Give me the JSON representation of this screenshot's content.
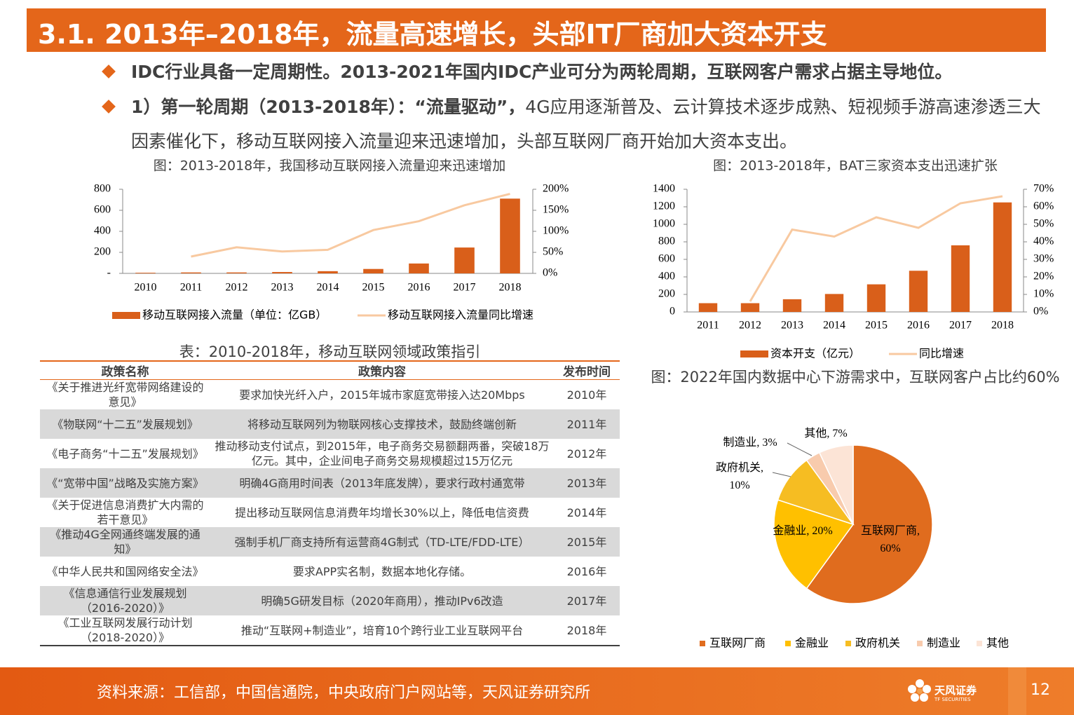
{
  "header": {
    "title": "3.1. 2013年–2018年，流量高速增长，头部IT厂商加大资本开支"
  },
  "bullets": [
    {
      "bold": "IDC行业具备一定周期性。2013-2021年国内IDC产业可分为两轮周期，互联网客户需求占据主导地位。"
    },
    {
      "bold": "1）第一轮周期（2013-2018年）：“流量驱动”，",
      "text": "4G应用逐渐普及、云计算技术逐步成熟、短视频手游高速渗透三大因素催化下，移动互联网接入流量迎来迅速增加，头部互联网厂商开始加大资本支出。"
    }
  ],
  "chart_data": [
    {
      "type": "bar-line",
      "title": "图：2013-2018年，我国移动互联网接入流量迎来迅速增加",
      "categories": [
        "2010",
        "2011",
        "2012",
        "2013",
        "2014",
        "2015",
        "2016",
        "2017",
        "2018"
      ],
      "series": [
        {
          "name": "移动互联网接入流量（单位：亿GB）",
          "type": "bar",
          "color": "#d95f1a",
          "values": [
            6,
            9,
            9,
            13,
            21,
            42,
            94,
            246,
            711
          ]
        },
        {
          "name": "移动互联网接入流量同比增速",
          "type": "line",
          "axis": "y2",
          "color": "#f8c9a0",
          "values": [
            null,
            40,
            62,
            52,
            56,
            103,
            124,
            162,
            189
          ]
        }
      ],
      "ylim": [
        0,
        800
      ],
      "yticks": [
        {
          "value": 0,
          "label": "-"
        },
        200,
        400,
        600,
        800
      ],
      "y2lim": [
        0,
        200
      ],
      "y2ticks": [
        {
          "value": 0,
          "label": "0%"
        },
        {
          "value": 50,
          "label": "50%"
        },
        {
          "value": 100,
          "label": "100%"
        },
        {
          "value": 150,
          "label": "150%"
        },
        {
          "value": 200,
          "label": "200%"
        }
      ],
      "legend": "bottom"
    },
    {
      "type": "bar-line",
      "title": "图：2013-2018年，BAT三家资本支出迅速扩张",
      "categories": [
        "2011",
        "2012",
        "2013",
        "2014",
        "2015",
        "2016",
        "2017",
        "2018"
      ],
      "series": [
        {
          "name": "资本开支（亿元）",
          "type": "bar",
          "color": "#d95f1a",
          "values": [
            100,
            100,
            145,
            205,
            315,
            470,
            760,
            1250
          ]
        },
        {
          "name": "同比增速",
          "type": "line",
          "axis": "y2",
          "color": "#f8c9a0",
          "values": [
            null,
            6,
            47,
            43,
            54,
            48,
            62,
            66
          ]
        }
      ],
      "ylim": [
        0,
        1400
      ],
      "yticks": [
        0,
        200,
        400,
        600,
        800,
        1000,
        1200,
        1400
      ],
      "y2lim": [
        0,
        70
      ],
      "y2ticks": [
        {
          "value": 0,
          "label": "0%"
        },
        {
          "value": 10,
          "label": "10%"
        },
        {
          "value": 20,
          "label": "20%"
        },
        {
          "value": 30,
          "label": "30%"
        },
        {
          "value": 40,
          "label": "40%"
        },
        {
          "value": 50,
          "label": "50%"
        },
        {
          "value": 60,
          "label": "60%"
        },
        {
          "value": 70,
          "label": "70%"
        }
      ],
      "legend": "bottom"
    },
    {
      "type": "pie",
      "title": "图：2022年国内数据中心下游需求中，互联网客户占比约60%",
      "categories": [
        "互联网厂商",
        "金融业",
        "政府机关",
        "制造业",
        "其他"
      ],
      "values": [
        60,
        20,
        10,
        3,
        7
      ],
      "value_labels": [
        "互联网厂商, 60%",
        "金融业, 20%",
        "政府机关, 10%",
        "制造业, 3%",
        "其他, 7%"
      ],
      "colors": [
        "#e06c1e",
        "#ffc000",
        "#f6bd22",
        "#f8cbad",
        "#fce4d6"
      ],
      "legend": "bottom"
    }
  ],
  "table": {
    "title": "表：2010-2018年，移动互联网领域政策指引",
    "columns": [
      "政策名称",
      "政策内容",
      "发布时间"
    ],
    "rows": [
      [
        "《关于推进光纤宽带网络建设的意见》",
        "要求加快光纤入户，2015年城市家庭宽带接入达20Mbps",
        "2010年"
      ],
      [
        "《物联网“十二五”发展规划》",
        "将移动互联网列为物联网核心支撑技术，鼓励终端创新",
        "2011年"
      ],
      [
        "《电子商务“十二五”发展规划》",
        "推动移动支付试点，到2015年，电子商务交易额翻两番，突破18万亿元。其中，企业间电子商务交易规模超过15万亿元",
        "2012年"
      ],
      [
        "《“宽带中国”战略及实施方案》",
        "明确4G商用时间表（2013年底发牌），要求行政村通宽带",
        "2013年"
      ],
      [
        "《关于促进信息消费扩大内需的若干意见》",
        "提出移动互联网信息消费年均增长30%以上，降低电信资费",
        "2014年"
      ],
      [
        "《推动4G全网通终端发展的通知》",
        "强制手机厂商支持所有运营商4G制式（TD-LTE/FDD-LTE）",
        "2015年"
      ],
      [
        "《中华人民共和国网络安全法》",
        "要求APP实名制，数据本地化存储。",
        "2016年"
      ],
      [
        "《信息通信行业发展规划（2016-2020）》",
        "明确5G研发目标（2020年商用），推动IPv6改造",
        "2017年"
      ],
      [
        "《工业互联网发展行动计划（2018-2020）》",
        "推动“互联网+制造业”，培育10个跨行业工业互联网平台",
        "2018年"
      ]
    ]
  },
  "footer": {
    "source": "资料来源：工信部，中国信通院，中央政府门户网站等，天风证券研究所",
    "logo": "天风证券",
    "logo_sub": "TF SECURITIES",
    "page_number": 12
  }
}
